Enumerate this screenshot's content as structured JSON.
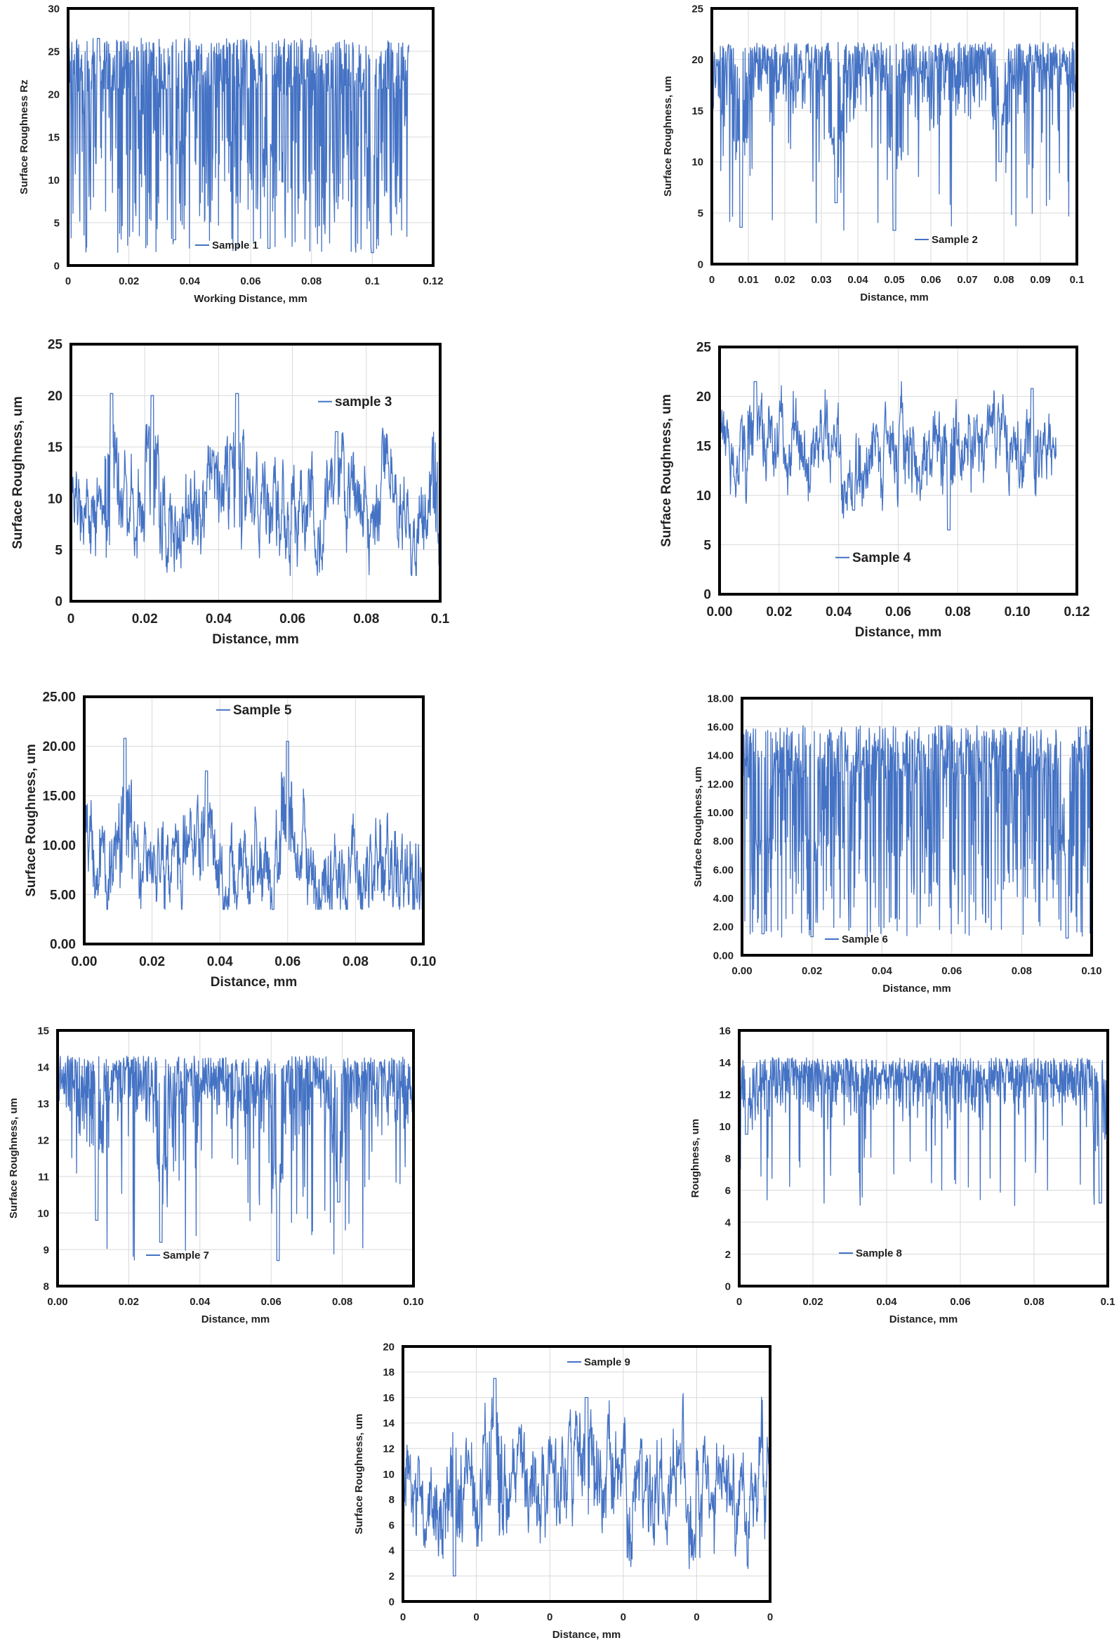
{
  "figure": {
    "line_color": "#4472C4",
    "grid_color": "#d9d9d9",
    "frame_color": "#000000"
  },
  "chart_data": [
    {
      "id": "c1",
      "type": "line",
      "title": "",
      "xlabel": "Working Distance, mm",
      "ylabel": "Surface Roughness Rz",
      "xlim": [
        0,
        0.12
      ],
      "ylim": [
        0,
        30
      ],
      "xticks": [
        "0",
        "0.02",
        "0.04",
        "0.06",
        "0.08",
        "0.1",
        "0.12"
      ],
      "yticks": [
        "0",
        "5",
        "10",
        "15",
        "20",
        "25",
        "30"
      ],
      "grid": true,
      "legend": "bottom-center",
      "series": [
        {
          "name": "Sample 1",
          "x_range": [
            0,
            0.112
          ],
          "min": 1.5,
          "max": 26.5,
          "mean": 14,
          "style": "spiky",
          "notable": [
            [
              0.01,
              26.5
            ],
            [
              0.035,
              3
            ],
            [
              0.066,
              2
            ],
            [
              0.1,
              1.5
            ]
          ]
        }
      ]
    },
    {
      "id": "c2",
      "type": "line",
      "title": "",
      "xlabel": "Distance, mm",
      "ylabel": "Surface Roughness, um",
      "xlim": [
        0,
        0.1
      ],
      "ylim": [
        0,
        25
      ],
      "xticks": [
        "0",
        "0.01",
        "0.02",
        "0.03",
        "0.04",
        "0.05",
        "0.06",
        "0.07",
        "0.08",
        "0.09",
        "0.1"
      ],
      "yticks": [
        "0",
        "5",
        "10",
        "15",
        "20",
        "25"
      ],
      "grid": true,
      "legend": "bottom-right",
      "series": [
        {
          "name": "Sample 2",
          "x_range": [
            0,
            0.1
          ],
          "min": 3.3,
          "max": 21.7,
          "mean": 19,
          "style": "top-dips",
          "notable": [
            [
              0.008,
              3.6
            ],
            [
              0.034,
              6
            ],
            [
              0.05,
              3.3
            ],
            [
              0.079,
              10
            ]
          ]
        }
      ]
    },
    {
      "id": "c3",
      "type": "line",
      "title": "",
      "xlabel": "Distance, mm",
      "ylabel": "Surface Roughness, um",
      "xlim": [
        0,
        0.1
      ],
      "ylim": [
        0,
        25
      ],
      "xticks": [
        "0",
        "0.02",
        "0.04",
        "0.06",
        "0.08",
        "0.1"
      ],
      "yticks": [
        "0",
        "5",
        "10",
        "15",
        "20",
        "25"
      ],
      "grid": true,
      "legend": "top-right",
      "series": [
        {
          "name": "sample 3",
          "x_range": [
            0,
            0.1
          ],
          "min": 2.5,
          "max": 20.3,
          "mean": 9,
          "style": "noisy",
          "notable": [
            [
              0.011,
              20.2
            ],
            [
              0.022,
              20
            ],
            [
              0.045,
              20.2
            ],
            [
              0.072,
              16.5
            ],
            [
              0.1,
              3.5
            ]
          ]
        }
      ]
    },
    {
      "id": "c4",
      "type": "line",
      "title": "",
      "xlabel": "Distance, mm",
      "ylabel": "Surface Roughness, um",
      "xlim": [
        0,
        0.12
      ],
      "ylim": [
        0,
        25
      ],
      "xticks": [
        "0.00",
        "0.02",
        "0.04",
        "0.06",
        "0.08",
        "0.10",
        "0.12"
      ],
      "yticks": [
        "0",
        "5",
        "10",
        "15",
        "20",
        "25"
      ],
      "grid": true,
      "legend": "bottom-center",
      "series": [
        {
          "name": "Sample 4",
          "x_range": [
            0,
            0.113
          ],
          "min": 6.5,
          "max": 21.5,
          "mean": 15,
          "style": "noisy",
          "notable": [
            [
              0.012,
              21.5
            ],
            [
              0.045,
              8.5
            ],
            [
              0.077,
              6.5
            ],
            [
              0.105,
              20.8
            ]
          ]
        }
      ]
    },
    {
      "id": "c5",
      "type": "line",
      "title": "",
      "xlabel": "Distance, mm",
      "ylabel": "Surface Roughness, um",
      "xlim": [
        0,
        0.1
      ],
      "ylim": [
        0,
        25
      ],
      "xticks": [
        "0.00",
        "0.02",
        "0.04",
        "0.06",
        "0.08",
        "0.10"
      ],
      "yticks": [
        "0.00",
        "5.00",
        "10.00",
        "15.00",
        "20.00",
        "25.00"
      ],
      "grid": true,
      "legend": "top-center",
      "series": [
        {
          "name": "Sample 5",
          "x_range": [
            0,
            0.1
          ],
          "min": 3.5,
          "max": 20.8,
          "mean": 8,
          "style": "noisy",
          "notable": [
            [
              0.012,
              20.8
            ],
            [
              0.036,
              17.5
            ],
            [
              0.06,
              20.5
            ],
            [
              0.1,
              3.5
            ]
          ]
        }
      ]
    },
    {
      "id": "c6",
      "type": "line",
      "title": "",
      "xlabel": "Distance, mm",
      "ylabel": "Surface Roughness, um",
      "xlim": [
        0,
        0.1
      ],
      "ylim": [
        0,
        18
      ],
      "xticks": [
        "0.00",
        "0.02",
        "0.04",
        "0.06",
        "0.08",
        "0.10"
      ],
      "yticks": [
        "0.00",
        "2.00",
        "4.00",
        "6.00",
        "8.00",
        "10.00",
        "12.00",
        "14.00",
        "16.00",
        "18.00"
      ],
      "grid": true,
      "legend": "bottom-center",
      "series": [
        {
          "name": "Sample 6",
          "x_range": [
            0,
            0.1
          ],
          "min": 1.2,
          "max": 16.1,
          "mean": 9,
          "style": "spiky",
          "notable": [
            [
              0.006,
              1.5
            ],
            [
              0.02,
              1.3
            ],
            [
              0.093,
              1.2
            ]
          ]
        }
      ]
    },
    {
      "id": "c7",
      "type": "line",
      "title": "",
      "xlabel": "Distance, mm",
      "ylabel": "Surface Roughness, um",
      "xlim": [
        0,
        0.1
      ],
      "ylim": [
        8,
        15
      ],
      "xticks": [
        "0.00",
        "0.02",
        "0.04",
        "0.06",
        "0.08",
        "0.10"
      ],
      "yticks": [
        "8",
        "9",
        "10",
        "11",
        "12",
        "13",
        "14",
        "15"
      ],
      "grid": true,
      "legend": "bottom-left",
      "series": [
        {
          "name": "Sample 7",
          "x_range": [
            0,
            0.1
          ],
          "min": 8.7,
          "max": 14.3,
          "mean": 13.6,
          "style": "top-dips",
          "notable": [
            [
              0.011,
              9.8
            ],
            [
              0.029,
              9.2
            ],
            [
              0.062,
              8.7
            ],
            [
              0.079,
              10.3
            ]
          ]
        }
      ]
    },
    {
      "id": "c8",
      "type": "line",
      "title": "",
      "xlabel": "Distance, mm",
      "ylabel": "Roughness, um",
      "xlim": [
        0,
        0.1
      ],
      "ylim": [
        0,
        16
      ],
      "xticks": [
        "0",
        "0.02",
        "0.04",
        "0.06",
        "0.08",
        "0.1"
      ],
      "yticks": [
        "0",
        "2",
        "4",
        "6",
        "8",
        "10",
        "12",
        "14",
        "16"
      ],
      "grid": true,
      "legend": "bottom-center",
      "series": [
        {
          "name": "Sample 8",
          "x_range": [
            0,
            0.1
          ],
          "min": 5,
          "max": 14.3,
          "mean": 12.5,
          "style": "top-dips",
          "notable": [
            [
              0.002,
              9.5
            ],
            [
              0.098,
              5.2
            ]
          ]
        }
      ]
    },
    {
      "id": "c9",
      "type": "line",
      "title": "",
      "xlabel": "Distance, mm",
      "ylabel": "Surface Roughness, um",
      "xlim": [
        0,
        1
      ],
      "ylim": [
        0,
        20
      ],
      "xticks": [
        "0",
        "0",
        "0",
        "0",
        "0",
        "0"
      ],
      "yticks": [
        "0",
        "2",
        "4",
        "6",
        "8",
        "10",
        "12",
        "14",
        "16",
        "18",
        "20"
      ],
      "grid": true,
      "legend": "top-center",
      "series": [
        {
          "name": "Sample 9",
          "x_range": [
            0,
            1
          ],
          "min": 1.5,
          "max": 17.5,
          "mean": 9,
          "style": "noisy",
          "notable": [
            [
              0.25,
              17.5
            ],
            [
              0.14,
              2
            ],
            [
              0.5,
              16
            ]
          ]
        }
      ]
    }
  ]
}
